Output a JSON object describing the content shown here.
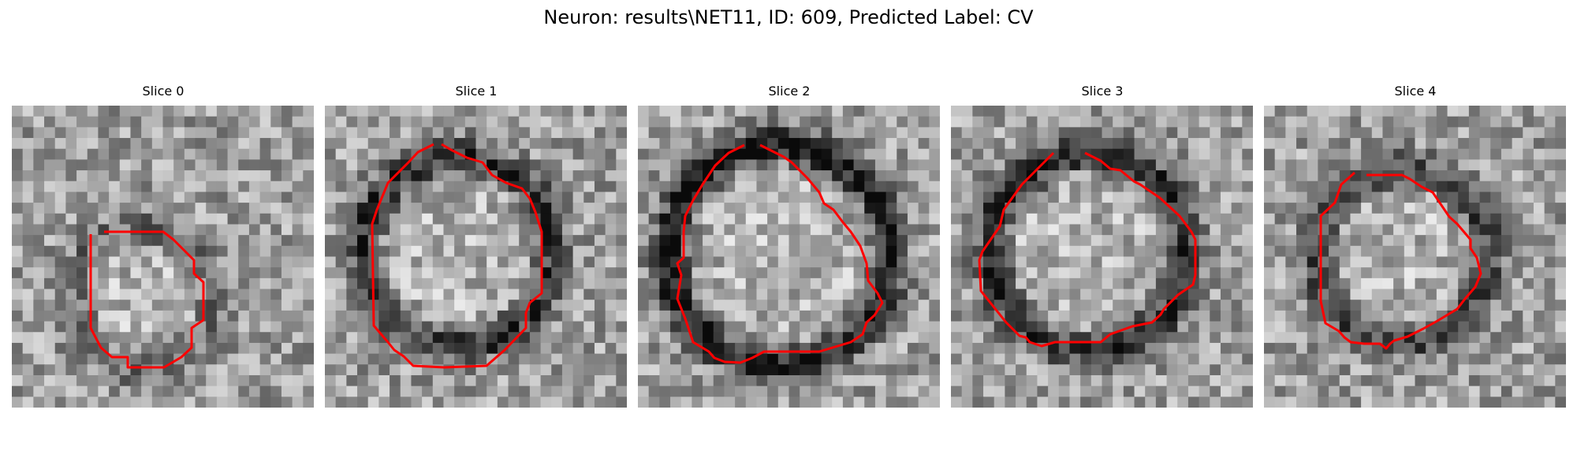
{
  "figure": {
    "title": "Neuron: results\\NET11, ID: 609, Predicted Label: CV"
  },
  "outline_color": "#ff0000",
  "colormap": "gray",
  "slices": [
    {
      "label": "Slice 0"
    },
    {
      "label": "Slice 1"
    },
    {
      "label": "Slice 2"
    },
    {
      "label": "Slice 3"
    },
    {
      "label": "Slice 4"
    }
  ]
}
